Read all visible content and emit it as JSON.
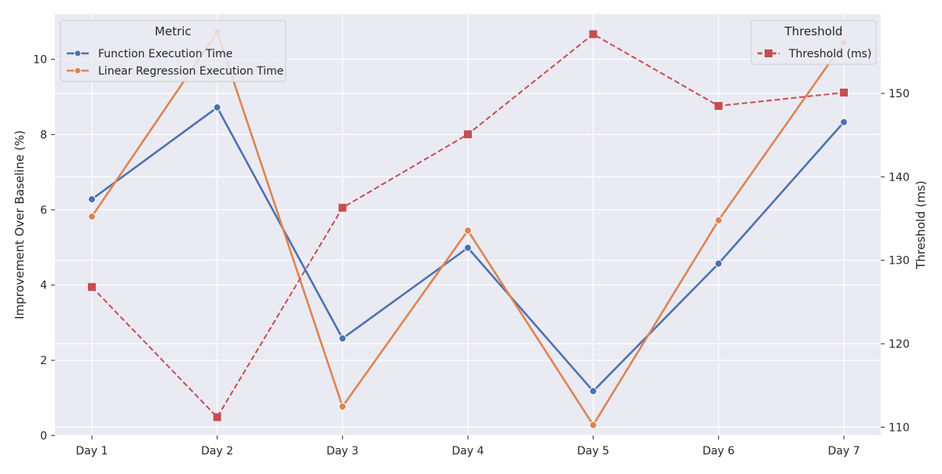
{
  "chart_data": {
    "type": "line",
    "categories": [
      "Day 1",
      "Day 2",
      "Day 3",
      "Day 4",
      "Day 5",
      "Day 6",
      "Day 7"
    ],
    "ylabel": "Improvement Over Baseline (%)",
    "y2label": "Threshold (ms)",
    "ylim": [
      0,
      11.2
    ],
    "y2lim": [
      109,
      159.5
    ],
    "yticks": [
      0,
      2,
      4,
      6,
      8,
      10
    ],
    "y2ticks": [
      110,
      120,
      130,
      140,
      150
    ],
    "grid": true,
    "series": [
      {
        "name": "Function Execution Time",
        "axis": "left",
        "color": "#4c72b0",
        "style": "solid",
        "marker": "circle",
        "values": [
          6.28,
          8.72,
          2.58,
          4.99,
          1.18,
          4.57,
          8.33
        ]
      },
      {
        "name": "Linear Regression Execution Time",
        "axis": "left",
        "color": "#dd8452",
        "style": "solid",
        "marker": "circle",
        "values": [
          5.82,
          10.72,
          0.77,
          5.45,
          0.28,
          5.72,
          10.45
        ]
      },
      {
        "name": "Threshold (ms)",
        "axis": "right",
        "color": "#c44e52",
        "style": "dashed",
        "marker": "square",
        "values": [
          126.8,
          111.2,
          136.3,
          145.1,
          157.1,
          148.5,
          150.1
        ]
      }
    ],
    "legends": [
      {
        "title": "Metric",
        "position": "top-left",
        "entries": [
          "Function Execution Time",
          "Linear Regression Execution Time"
        ]
      },
      {
        "title": "Threshold",
        "position": "top-right",
        "entries": [
          "Threshold (ms)"
        ]
      }
    ]
  }
}
